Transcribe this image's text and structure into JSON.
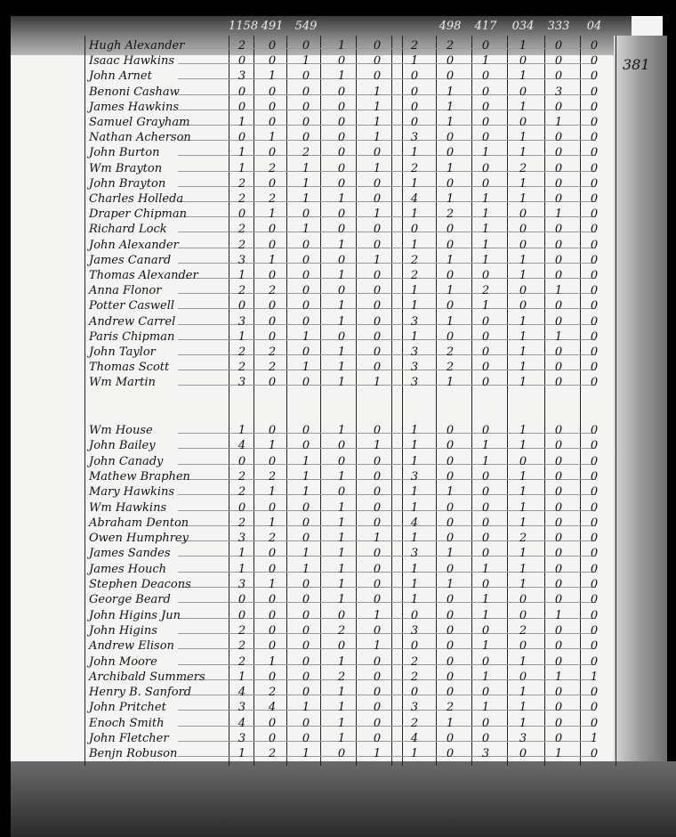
{
  "page_number": "381",
  "column_headers": [
    "1158",
    "491",
    "549",
    "",
    "",
    "",
    "498",
    "417",
    "034",
    "333",
    "04"
  ],
  "sections": [
    {
      "rows": [
        {
          "name": "Hugh Alexander",
          "values": [
            2,
            0,
            0,
            1,
            0,
            2,
            2,
            0,
            1,
            0,
            0
          ]
        },
        {
          "name": "Isaac Hawkins",
          "values": [
            0,
            0,
            1,
            0,
            0,
            1,
            0,
            1,
            0,
            0,
            0
          ]
        },
        {
          "name": "John Arnet",
          "values": [
            3,
            1,
            0,
            1,
            0,
            0,
            0,
            0,
            1,
            0,
            0
          ]
        },
        {
          "name": "Benoni Cashaw",
          "values": [
            0,
            0,
            0,
            0,
            1,
            0,
            1,
            0,
            0,
            3,
            0
          ]
        },
        {
          "name": "James Hawkins",
          "values": [
            0,
            0,
            0,
            0,
            1,
            0,
            1,
            0,
            1,
            0,
            0
          ]
        },
        {
          "name": "Samuel Grayham",
          "values": [
            1,
            0,
            0,
            0,
            1,
            0,
            1,
            0,
            0,
            1,
            0
          ]
        },
        {
          "name": "Nathan Acherson",
          "values": [
            0,
            1,
            0,
            0,
            1,
            3,
            0,
            0,
            1,
            0,
            0
          ]
        },
        {
          "name": "John Burton",
          "values": [
            1,
            0,
            2,
            0,
            0,
            1,
            0,
            1,
            1,
            0,
            0
          ]
        },
        {
          "name": "Wm Brayton",
          "values": [
            1,
            2,
            1,
            0,
            1,
            2,
            1,
            0,
            2,
            0,
            0
          ]
        },
        {
          "name": "John Brayton",
          "values": [
            2,
            0,
            1,
            0,
            0,
            1,
            0,
            0,
            1,
            0,
            0
          ]
        },
        {
          "name": "Charles Holleda",
          "values": [
            2,
            2,
            1,
            1,
            0,
            4,
            1,
            1,
            1,
            0,
            0
          ]
        },
        {
          "name": "Draper Chipman",
          "values": [
            0,
            1,
            0,
            0,
            1,
            1,
            2,
            1,
            0,
            1,
            0
          ]
        },
        {
          "name": "Richard Lock",
          "values": [
            2,
            0,
            1,
            0,
            0,
            0,
            0,
            1,
            0,
            0,
            0
          ]
        },
        {
          "name": "John Alexander",
          "values": [
            2,
            0,
            0,
            1,
            0,
            1,
            0,
            1,
            0,
            0,
            0
          ]
        },
        {
          "name": "James Canard",
          "values": [
            3,
            1,
            0,
            0,
            1,
            2,
            1,
            1,
            1,
            0,
            0
          ]
        },
        {
          "name": "Thomas Alexander",
          "values": [
            1,
            0,
            0,
            1,
            0,
            2,
            0,
            0,
            1,
            0,
            0
          ]
        },
        {
          "name": "Anna Flonor",
          "values": [
            2,
            2,
            0,
            0,
            0,
            1,
            1,
            2,
            0,
            1,
            0
          ]
        },
        {
          "name": "Potter Caswell",
          "values": [
            0,
            0,
            0,
            1,
            0,
            1,
            0,
            1,
            0,
            0,
            0
          ]
        },
        {
          "name": "Andrew Carrel",
          "values": [
            3,
            0,
            0,
            1,
            0,
            3,
            1,
            0,
            1,
            0,
            0
          ]
        },
        {
          "name": "Paris Chipman",
          "values": [
            1,
            0,
            1,
            0,
            0,
            1,
            0,
            0,
            1,
            1,
            0
          ]
        },
        {
          "name": "John Taylor",
          "values": [
            2,
            2,
            0,
            1,
            0,
            3,
            2,
            0,
            1,
            0,
            0
          ]
        },
        {
          "name": "Thomas Scott",
          "values": [
            2,
            2,
            1,
            1,
            0,
            3,
            2,
            0,
            1,
            0,
            0
          ]
        },
        {
          "name": "Wm Martin",
          "values": [
            3,
            0,
            0,
            1,
            1,
            3,
            1,
            0,
            1,
            0,
            0
          ]
        }
      ]
    },
    {
      "rows": [
        {
          "name": "Wm House",
          "values": [
            1,
            0,
            0,
            1,
            0,
            1,
            0,
            0,
            1,
            0,
            0
          ]
        },
        {
          "name": "John Bailey",
          "values": [
            4,
            1,
            0,
            0,
            1,
            1,
            0,
            1,
            1,
            0,
            0
          ]
        },
        {
          "name": "John Canady",
          "values": [
            0,
            0,
            1,
            0,
            0,
            1,
            0,
            1,
            0,
            0,
            0
          ]
        },
        {
          "name": "Mathew Braphen",
          "values": [
            2,
            2,
            1,
            1,
            0,
            3,
            0,
            0,
            1,
            0,
            0
          ]
        },
        {
          "name": "Mary Hawkins",
          "values": [
            2,
            1,
            1,
            0,
            0,
            1,
            1,
            0,
            1,
            0,
            0
          ]
        },
        {
          "name": "Wm Hawkins",
          "values": [
            0,
            0,
            0,
            1,
            0,
            1,
            0,
            0,
            1,
            0,
            0
          ]
        },
        {
          "name": "Abraham Denton",
          "values": [
            2,
            1,
            0,
            1,
            0,
            4,
            0,
            0,
            1,
            0,
            0
          ]
        },
        {
          "name": "Owen Humphrey",
          "values": [
            3,
            2,
            0,
            1,
            1,
            1,
            0,
            0,
            2,
            0,
            0
          ]
        },
        {
          "name": "James Sandes",
          "values": [
            1,
            0,
            1,
            1,
            0,
            3,
            1,
            0,
            1,
            0,
            0
          ]
        },
        {
          "name": "James Houch",
          "values": [
            1,
            0,
            1,
            1,
            0,
            1,
            0,
            1,
            1,
            0,
            0
          ]
        },
        {
          "name": "Stephen Deacons",
          "values": [
            3,
            1,
            0,
            1,
            0,
            1,
            1,
            0,
            1,
            0,
            0
          ]
        },
        {
          "name": "George Beard",
          "values": [
            0,
            0,
            0,
            1,
            0,
            1,
            0,
            1,
            0,
            0,
            0
          ]
        },
        {
          "name": "John Higins Jun",
          "values": [
            0,
            0,
            0,
            0,
            1,
            0,
            0,
            1,
            0,
            1,
            0
          ]
        },
        {
          "name": "John Higins",
          "values": [
            2,
            0,
            0,
            2,
            0,
            3,
            0,
            0,
            2,
            0,
            0
          ]
        },
        {
          "name": "Andrew Elison",
          "values": [
            2,
            0,
            0,
            0,
            1,
            0,
            0,
            1,
            0,
            0,
            0
          ]
        },
        {
          "name": "John Moore",
          "values": [
            2,
            1,
            0,
            1,
            0,
            2,
            0,
            0,
            1,
            0,
            0
          ]
        },
        {
          "name": "Archibald Summers",
          "values": [
            1,
            0,
            0,
            2,
            0,
            2,
            0,
            1,
            0,
            1,
            1
          ]
        },
        {
          "name": "Henry B. Sanford",
          "values": [
            4,
            2,
            0,
            1,
            0,
            0,
            0,
            0,
            1,
            0,
            0
          ]
        },
        {
          "name": "John Pritchet",
          "values": [
            3,
            4,
            1,
            1,
            0,
            3,
            2,
            1,
            1,
            0,
            0
          ]
        },
        {
          "name": "Enoch Smith",
          "values": [
            4,
            0,
            0,
            1,
            0,
            2,
            1,
            0,
            1,
            0,
            0
          ]
        },
        {
          "name": "John Fletcher",
          "values": [
            3,
            0,
            0,
            1,
            0,
            4,
            0,
            0,
            3,
            0,
            1
          ]
        },
        {
          "name": "Benjn Robuson",
          "values": [
            1,
            2,
            1,
            0,
            1,
            1,
            0,
            3,
            0,
            1,
            0
          ]
        }
      ]
    }
  ]
}
